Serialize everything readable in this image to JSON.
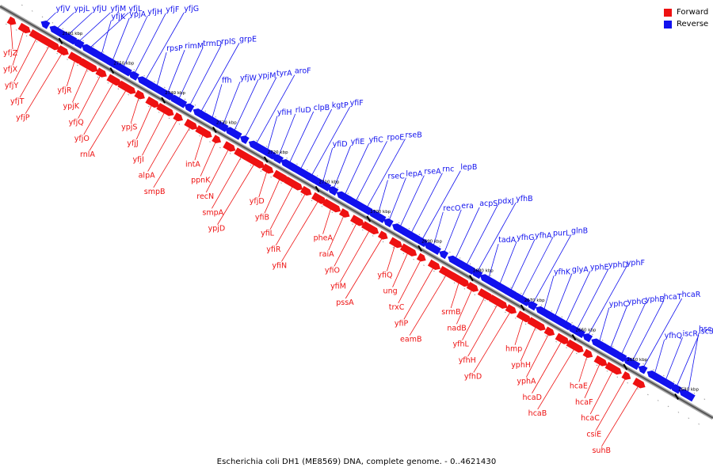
{
  "legend": {
    "forward_label": "Forward",
    "reverse_label": "Reverse",
    "forward_color": "#ee1111",
    "reverse_color": "#1111ee"
  },
  "caption": {
    "organism": "Escherichia coli DH1 (ME8569) DNA, complete genome.",
    "range": "- 0..4621430"
  },
  "ruler_labels": [
    "2760 kbp",
    "2750 kbp",
    "2740 kbp",
    "2730 kbp",
    "2720 kbp",
    "2710 kbp",
    "2700 kbp",
    "2690 kbp",
    "2680 kbp",
    "2670 kbp",
    "2660 kbp",
    "2650 kbp",
    "2640 kbp"
  ],
  "reverse_genes": [
    "yfjV",
    "ypjL",
    "yfjU",
    "yfjM",
    "yfjL",
    "yfjK",
    "ypjA",
    "yfjH",
    "yfjF",
    "yfjG",
    "rpsP",
    "rimM",
    "trmD",
    "rplS",
    "grpE",
    "ffh",
    "yfjW",
    "ypjM",
    "tyrA",
    "aroF",
    "yfiH",
    "rluD",
    "clpB",
    "kgtP",
    "yfiF",
    "yfiD",
    "yfiE",
    "yfiC",
    "rpoE",
    "rseB",
    "rseC",
    "lepA",
    "rseA",
    "rnc",
    "lepB",
    "recO",
    "era",
    "acpS",
    "pdxJ",
    "yfhB",
    "tadA",
    "yfhG",
    "yfhA",
    "purL",
    "glnB",
    "yfhK",
    "glyA",
    "yphE",
    "yphD",
    "yphF",
    "yphC",
    "yphG",
    "yphB",
    "hcaT",
    "hcaR",
    "yfhQ",
    "iscR",
    "iscS",
    "hscA"
  ],
  "forward_genes": [
    "yfjZ",
    "yfjX",
    "yfjY",
    "yfjT",
    "yfjP",
    "yfjR",
    "ypjK",
    "yfjQ",
    "yfjO",
    "rnlA",
    "ypjS",
    "yfjJ",
    "yfjI",
    "alpA",
    "smpB",
    "intA",
    "ppnK",
    "recN",
    "smpA",
    "ypjD",
    "yfjD",
    "yfiB",
    "yfiL",
    "yfiR",
    "yfiN",
    "pheA",
    "raiA",
    "yfiO",
    "yfiM",
    "pssA",
    "yfiQ",
    "ung",
    "trxC",
    "yfiP",
    "eamB",
    "srmB",
    "nadB",
    "yfhL",
    "yfhH",
    "yfhD",
    "hmp",
    "yphH",
    "yphA",
    "hcaD",
    "hcaB",
    "hcaE",
    "hcaF",
    "hcaC",
    "csiE",
    "suhB"
  ]
}
